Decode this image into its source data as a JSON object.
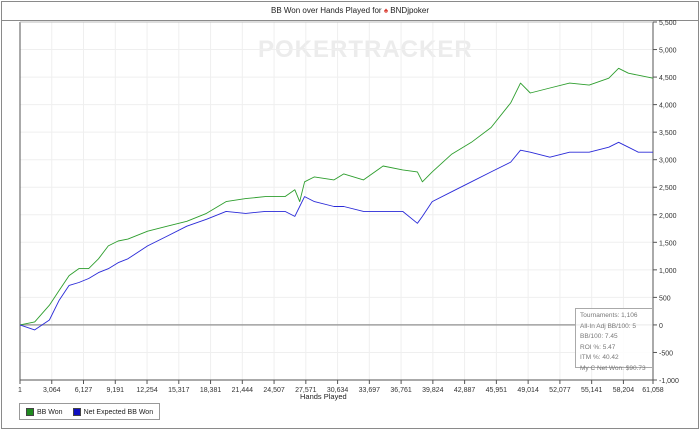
{
  "chart_data": {
    "type": "line",
    "title": "BB Won over Hands Played for",
    "player": "BNDjpoker",
    "xlabel": "Hands Played",
    "ylabel": "",
    "xlim": [
      1,
      61058
    ],
    "ylim": [
      -1000,
      5500
    ],
    "x_ticks": [
      "1",
      "3,064",
      "6,127",
      "9,191",
      "12,254",
      "15,317",
      "18,381",
      "21,444",
      "24,507",
      "27,571",
      "30,634",
      "33,697",
      "36,761",
      "39,824",
      "42,887",
      "45,951",
      "49,014",
      "52,077",
      "55,141",
      "58,204",
      "61,058"
    ],
    "y_ticks": [
      "-1,000",
      "-500",
      "0",
      "500",
      "1,000",
      "1,500",
      "2,000",
      "2,500",
      "3,000",
      "3,500",
      "4,000",
      "4,500",
      "5,000",
      "5,500"
    ],
    "grid": true,
    "legend_position": "bottom-left",
    "x": [
      1,
      1420,
      2840,
      3786,
      4733,
      5680,
      6626,
      7573,
      8519,
      9466,
      10413,
      12306,
      14199,
      16092,
      17985,
      19879,
      21772,
      23665,
      25558,
      26505,
      26978,
      27451,
      28398,
      30291,
      31238,
      33131,
      35024,
      36917,
      38337,
      38811,
      39757,
      41650,
      43544,
      45437,
      47330,
      48277,
      49223,
      51116,
      53010,
      54903,
      56796,
      57743,
      58689,
      59636,
      61058
    ],
    "series": [
      {
        "name": "BB Won",
        "color": "#2e9e2e",
        "values": [
          0,
          54,
          358,
          627,
          896,
          1022,
          1022,
          1201,
          1434,
          1523,
          1559,
          1702,
          1792,
          1882,
          2025,
          2240,
          2294,
          2330,
          2330,
          2455,
          2240,
          2598,
          2688,
          2634,
          2742,
          2634,
          2885,
          2814,
          2778,
          2598,
          2778,
          3101,
          3315,
          3584,
          4032,
          4390,
          4211,
          4301,
          4390,
          4354,
          4480,
          4659,
          4570,
          4534,
          4480
        ]
      },
      {
        "name": "Net Expected BB Won",
        "color": "#2a2ad8",
        "values": [
          0,
          -90,
          90,
          448,
          717,
          771,
          842,
          950,
          1021,
          1129,
          1201,
          1434,
          1613,
          1792,
          1917,
          2061,
          2025,
          2061,
          2061,
          1971,
          2150,
          2330,
          2240,
          2150,
          2150,
          2061,
          2061,
          2061,
          1846,
          1971,
          2240,
          2419,
          2598,
          2778,
          2957,
          3172,
          3136,
          3046,
          3136,
          3136,
          3226,
          3315,
          3226,
          3136,
          3136
        ]
      }
    ],
    "legend_colors": {
      "bb_won": "#1f8a1f",
      "net_expected": "#1010c0"
    }
  },
  "watermark": "POKERTRACKER",
  "stats": [
    "Tournaments: 1,106",
    "All-In Adj BB/100: 5",
    "BB/100: 7.45",
    "ROI %: 5.47",
    "ITM %: 40.42",
    "My C Net Won: $90.73"
  ]
}
